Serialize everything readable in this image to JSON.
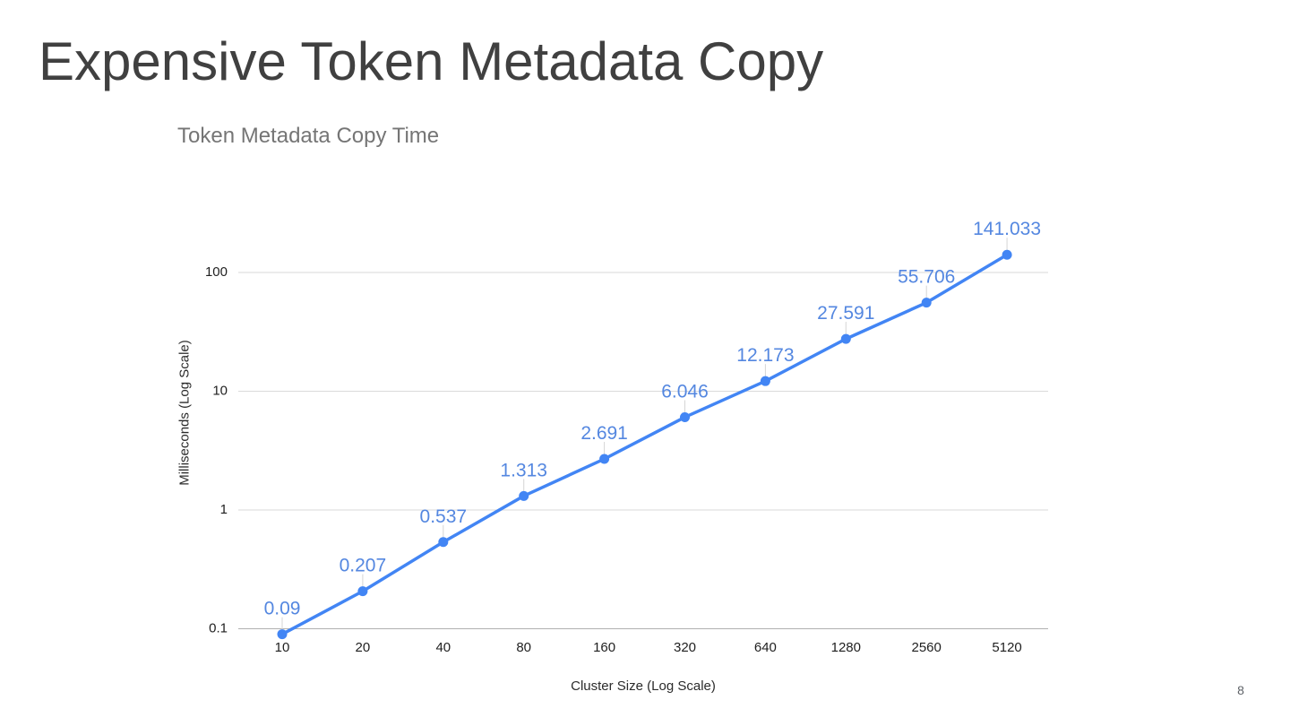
{
  "slide": {
    "title": "Expensive Token Metadata Copy",
    "page_number": "8"
  },
  "chart": {
    "title": "Token Metadata Copy Time"
  },
  "chart_data": {
    "type": "line",
    "title": "Token Metadata Copy Time",
    "xlabel": "Cluster Size (Log Scale)",
    "ylabel": "Milliseconds (Log Scale)",
    "x": [
      10,
      20,
      40,
      80,
      160,
      320,
      640,
      1280,
      2560,
      5120
    ],
    "x_tick_labels": [
      "10",
      "20",
      "40",
      "80",
      "160",
      "320",
      "640",
      "1280",
      "2560",
      "5120"
    ],
    "values": [
      0.09,
      0.207,
      0.537,
      1.313,
      2.691,
      6.046,
      12.173,
      27.591,
      55.706,
      141.033
    ],
    "data_labels": [
      "0.09",
      "0.207",
      "0.537",
      "1.313",
      "2.691",
      "6.046",
      "12.173",
      "27.591",
      "55.706",
      "141.033"
    ],
    "x_scale": "log",
    "y_scale": "log",
    "y_ticks": [
      0.1,
      1,
      10,
      100
    ],
    "y_tick_labels": [
      "0.1",
      "1",
      "10",
      "100"
    ],
    "ylim": [
      0.1,
      300
    ],
    "grid": true,
    "legend_position": "none",
    "series_color": "#4285f4",
    "data_label_color": "#5487e0",
    "gridline_color": "#dadada",
    "axis_line_color": "#b0b0b0",
    "tick_label_color": "#1f1f1f"
  }
}
